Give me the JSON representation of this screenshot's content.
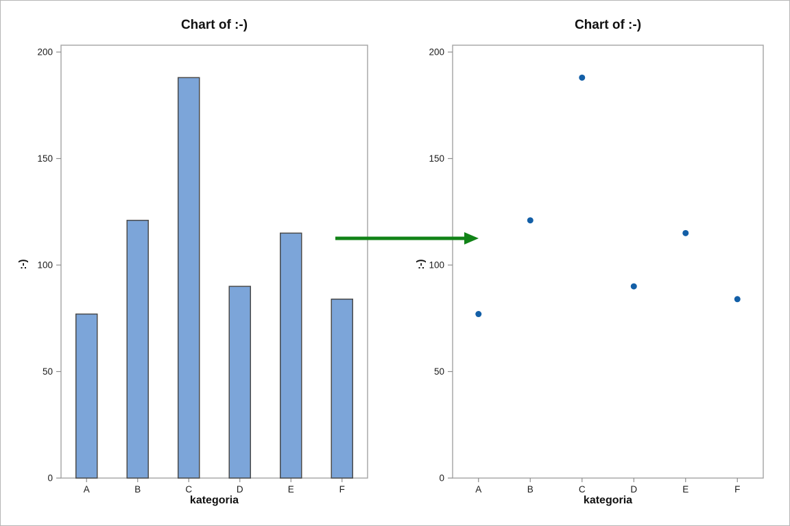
{
  "window": {
    "background": "#ffffff",
    "border_color": "#b5b5b5",
    "frame_color": "#a3a3a3",
    "tick_color": "#8c8c8c"
  },
  "arrow": {
    "description": "green arrow pointing from bar chart to scatter chart",
    "color": "#118317"
  },
  "chart_data": [
    {
      "type": "bar",
      "title": "Chart of :-)",
      "categories": [
        "A",
        "B",
        "C",
        "D",
        "E",
        "F"
      ],
      "values": [
        77,
        121,
        188,
        90,
        115,
        84
      ],
      "xlabel": "kategoria",
      "ylabel": ":-)",
      "ylim": [
        0,
        200
      ],
      "yticks": [
        0,
        50,
        100,
        150,
        200
      ],
      "grid": false,
      "legend": false,
      "bar_fill": "#7CA5D9",
      "bar_stroke": "#4A4A4A"
    },
    {
      "type": "scatter",
      "title": "Chart of :-)",
      "categories": [
        "A",
        "B",
        "C",
        "D",
        "E",
        "F"
      ],
      "values": [
        77,
        121,
        188,
        90,
        115,
        84
      ],
      "xlabel": "kategoria",
      "ylabel": ":-)",
      "ylim": [
        0,
        200
      ],
      "yticks": [
        0,
        50,
        100,
        150,
        200
      ],
      "grid": false,
      "legend": false,
      "point_color": "#135FA7"
    }
  ]
}
